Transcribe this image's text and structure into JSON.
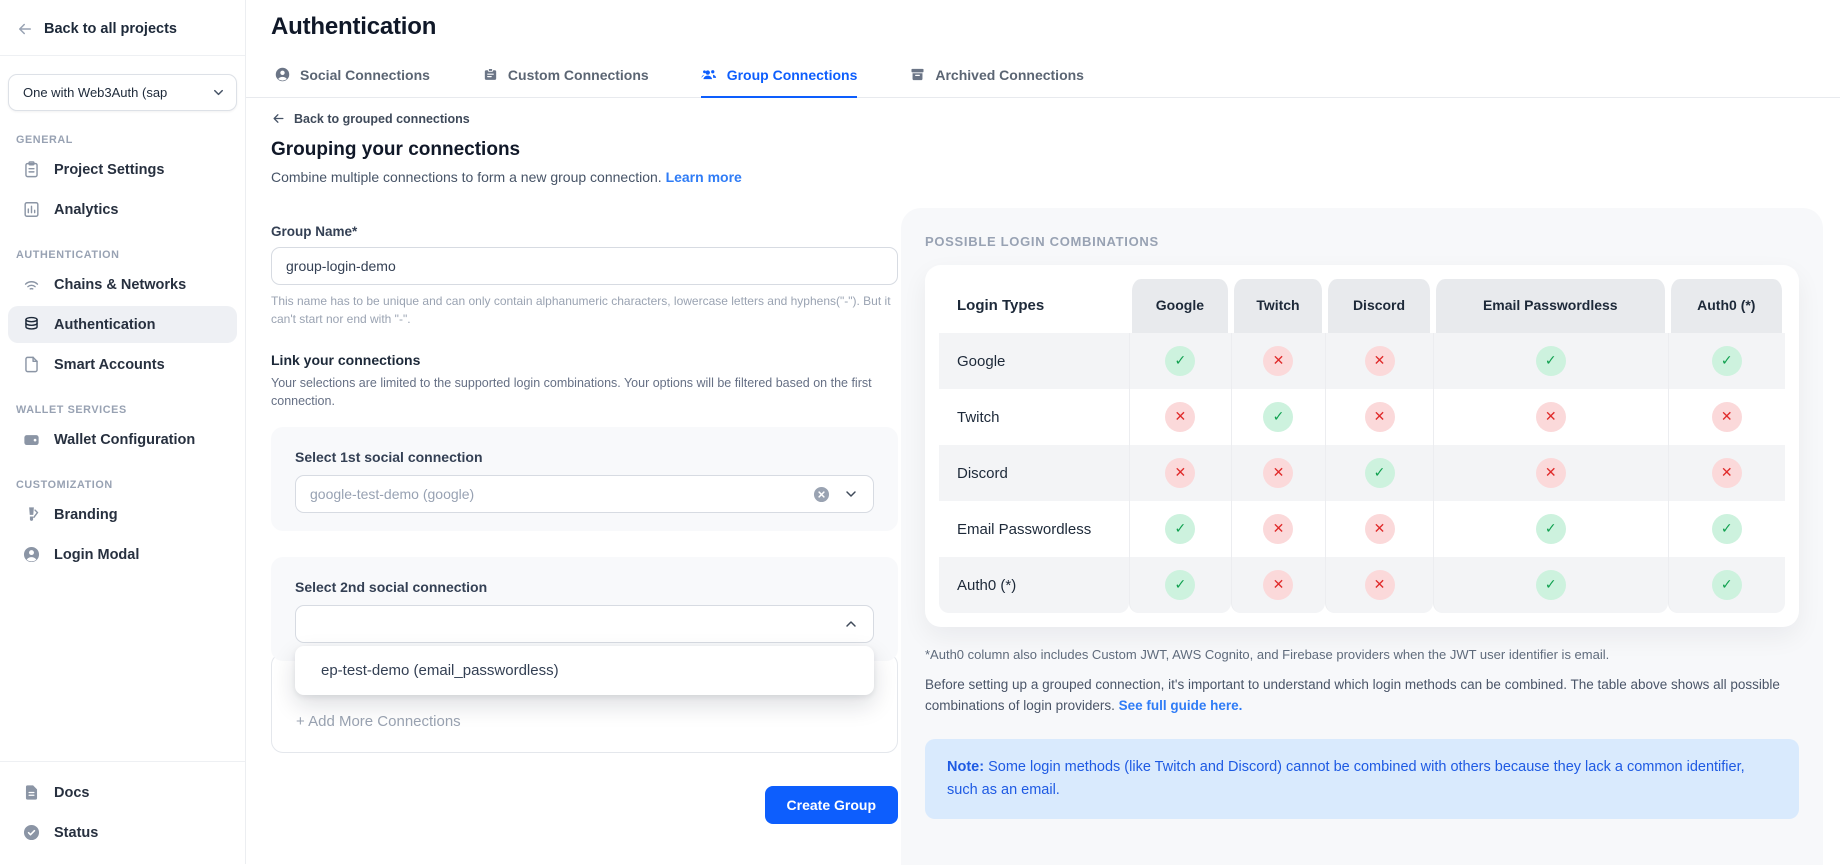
{
  "colors": {
    "accent": "#0d5efd",
    "link": "#2f7cf6",
    "check_bg": "#cdf2de",
    "check_fg": "#11a150",
    "cross_bg": "#fbd9da",
    "cross_fg": "#e02b2b",
    "note_bg": "#d9eafd",
    "note_fg": "#1e5ae3"
  },
  "sidebar": {
    "back_label": "Back to all projects",
    "project_selector": {
      "value": "One with Web3Auth (sap",
      "icon": "chevron-down"
    },
    "sections": [
      {
        "label": "GENERAL",
        "items": [
          {
            "label": "Project Settings",
            "icon": "clipboard",
            "active": false
          },
          {
            "label": "Analytics",
            "icon": "chart",
            "active": false
          }
        ]
      },
      {
        "label": "AUTHENTICATION",
        "items": [
          {
            "label": "Chains & Networks",
            "icon": "wifi",
            "active": false
          },
          {
            "label": "Authentication",
            "icon": "stack",
            "active": true
          },
          {
            "label": "Smart Accounts",
            "icon": "file",
            "active": false
          }
        ]
      },
      {
        "label": "WALLET SERVICES",
        "items": [
          {
            "label": "Wallet Configuration",
            "icon": "wallet",
            "active": false
          }
        ]
      },
      {
        "label": "CUSTOMIZATION",
        "items": [
          {
            "label": "Branding",
            "icon": "brush",
            "active": false
          },
          {
            "label": "Login Modal",
            "icon": "user-circle",
            "active": false
          }
        ]
      }
    ],
    "footer_items": [
      {
        "label": "Docs",
        "icon": "doc"
      },
      {
        "label": "Status",
        "icon": "check-circle"
      }
    ]
  },
  "header": {
    "title": "Authentication",
    "tabs": [
      {
        "label": "Social Connections",
        "icon": "user-circle",
        "active": false
      },
      {
        "label": "Custom Connections",
        "icon": "badge",
        "active": false
      },
      {
        "label": "Group Connections",
        "icon": "users",
        "active": true
      },
      {
        "label": "Archived Connections",
        "icon": "archive",
        "active": false
      }
    ]
  },
  "form": {
    "back_link": "Back to grouped connections",
    "heading": "Grouping your connections",
    "subheading": "Combine multiple connections to form a new group connection.",
    "learn_more": "Learn more",
    "group_name": {
      "label": "Group Name*",
      "value": "group-login-demo",
      "helper": "This name has to be unique and can only contain alphanumeric characters, lowercase letters and hyphens(\"-\"). But it can't start nor end with \"-\"."
    },
    "link_section": {
      "heading": "Link your connections",
      "description": "Your selections are limited to the supported login combinations. Your options will be filtered based on the first connection."
    },
    "select1": {
      "label": "Select 1st social connection",
      "value": "google-test-demo (google)"
    },
    "select2": {
      "label": "Select 2nd social connection",
      "value": ""
    },
    "dropdown_option": "ep-test-demo (email_passwordless)",
    "add_more": "+ Add More Connections",
    "create_button": "Create Group"
  },
  "combinations_panel": {
    "title": "POSSIBLE LOGIN COMBINATIONS",
    "table": {
      "columns": [
        "Login Types",
        "Google",
        "Twitch",
        "Discord",
        "Email Passwordless",
        "Auth0 (*)"
      ],
      "rows": [
        {
          "label": "Google",
          "values": [
            "yes",
            "no",
            "no",
            "yes",
            "yes"
          ]
        },
        {
          "label": "Twitch",
          "values": [
            "no",
            "yes",
            "no",
            "no",
            "no"
          ]
        },
        {
          "label": "Discord",
          "values": [
            "no",
            "no",
            "yes",
            "no",
            "no"
          ]
        },
        {
          "label": "Email Passwordless",
          "values": [
            "yes",
            "no",
            "no",
            "yes",
            "yes"
          ]
        },
        {
          "label": "Auth0 (*)",
          "values": [
            "yes",
            "no",
            "no",
            "yes",
            "yes"
          ]
        }
      ]
    },
    "footnote": "*Auth0 column also includes Custom JWT, AWS Cognito, and Firebase providers when the JWT user identifier is email.",
    "description": "Before setting up a grouped connection, it's important to understand which login methods can be combined. The table above shows all possible combinations of login providers.",
    "guide_link": "See full guide here.",
    "note_label": "Note:",
    "note_text": "Some login methods (like Twitch and Discord) cannot be combined with others because they lack a common identifier, such as an email."
  }
}
